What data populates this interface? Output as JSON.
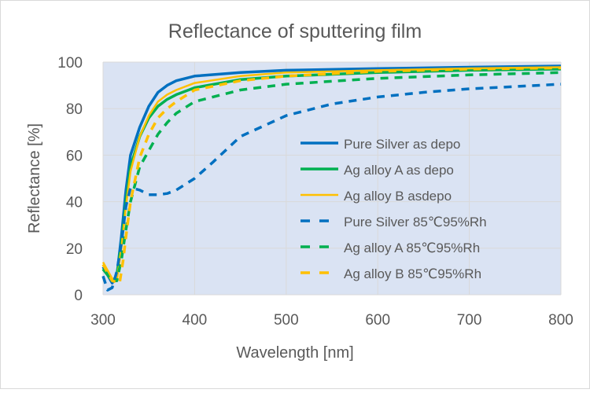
{
  "chart_data": {
    "type": "line",
    "title": "Reflectance of sputtering film",
    "xlabel": "Wavelength [nm]",
    "ylabel": "Reflectance [%]",
    "xlim": [
      300,
      800
    ],
    "ylim": [
      0,
      100
    ],
    "xticks": [
      300,
      400,
      500,
      600,
      700,
      800
    ],
    "yticks": [
      0,
      20,
      40,
      60,
      80,
      100
    ],
    "grid": true,
    "legend_position": "right",
    "plot_background": "#dae3f3",
    "series": [
      {
        "name": "Pure Silver as depo",
        "color": "#0070c0",
        "dash": false,
        "x": [
          300,
          310,
          315,
          320,
          325,
          330,
          340,
          350,
          360,
          370,
          380,
          400,
          450,
          500,
          600,
          700,
          800
        ],
        "y": [
          12,
          5,
          8,
          25,
          45,
          60,
          72,
          81,
          87,
          90,
          92,
          94,
          95.5,
          96.5,
          97.2,
          97.8,
          98.3
        ]
      },
      {
        "name": "Ag alloy A as depo",
        "color": "#00b050",
        "dash": false,
        "x": [
          300,
          310,
          315,
          320,
          325,
          330,
          340,
          350,
          360,
          370,
          380,
          400,
          450,
          500,
          600,
          700,
          800
        ],
        "y": [
          11,
          6,
          8,
          22,
          40,
          55,
          68,
          76,
          81,
          84,
          86,
          89,
          92.5,
          94,
          95.5,
          96.5,
          97
        ]
      },
      {
        "name": "Ag alloy B asdepo",
        "color": "#ffc000",
        "dash": false,
        "x": [
          300,
          310,
          315,
          320,
          325,
          330,
          340,
          350,
          360,
          370,
          380,
          400,
          450,
          500,
          600,
          700,
          800
        ],
        "y": [
          14,
          7,
          6,
          20,
          38,
          53,
          68,
          77,
          83,
          86,
          88,
          91,
          94,
          95.5,
          96.5,
          97.3,
          97.8
        ]
      },
      {
        "name": "Pure Silver   85℃95%Rh",
        "color": "#0070c0",
        "dash": true,
        "x": [
          300,
          305,
          310,
          315,
          320,
          325,
          330,
          340,
          350,
          360,
          370,
          380,
          400,
          420,
          450,
          500,
          550,
          600,
          650,
          700,
          750,
          800
        ],
        "y": [
          8,
          2,
          3,
          10,
          22,
          38,
          46,
          45,
          43,
          43,
          43.5,
          45,
          50,
          57,
          68,
          77,
          82,
          85,
          87,
          88.5,
          89.5,
          90.5
        ]
      },
      {
        "name": "Ag alloy A   85℃95%Rh",
        "color": "#00b050",
        "dash": true,
        "x": [
          300,
          310,
          315,
          320,
          325,
          330,
          340,
          350,
          360,
          370,
          380,
          400,
          450,
          500,
          600,
          700,
          800
        ],
        "y": [
          11,
          6,
          6,
          15,
          28,
          40,
          55,
          62,
          69,
          74,
          78,
          83,
          88,
          90.5,
          93,
          94.5,
          95.5
        ]
      },
      {
        "name": "Ag alloy B   85℃95%Rh",
        "color": "#ffc000",
        "dash": true,
        "x": [
          300,
          310,
          318,
          322,
          325,
          330,
          340,
          350,
          360,
          370,
          380,
          400,
          450,
          500,
          600,
          700,
          800
        ],
        "y": [
          13,
          6,
          5,
          15,
          25,
          40,
          59,
          69,
          76,
          80,
          83,
          88,
          92,
          94,
          96,
          97,
          97.5
        ]
      }
    ]
  }
}
